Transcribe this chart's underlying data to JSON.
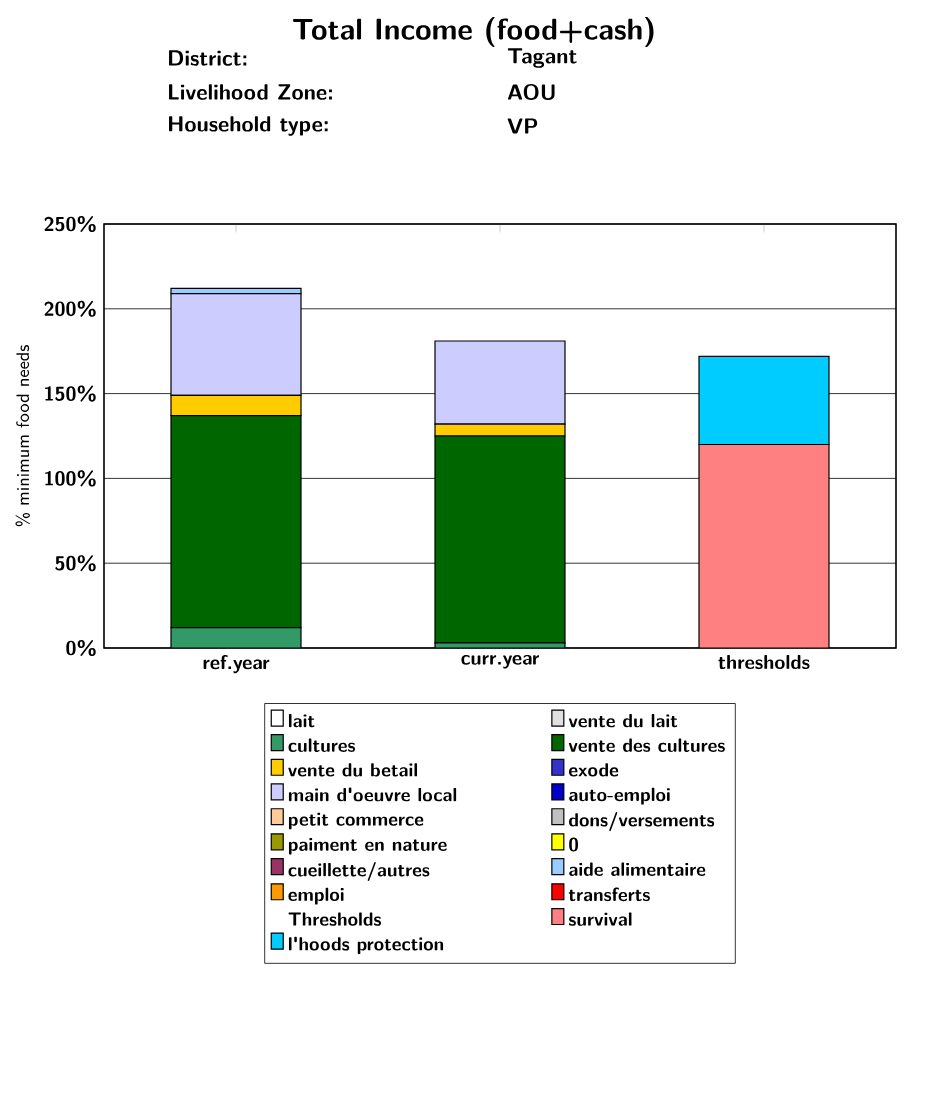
{
  "chart_data": {
    "type": "bar",
    "title": "Total Income (food+cash)",
    "annotations": [
      "District:",
      "Tagant",
      "Livelihood Zone:",
      "AOU",
      "Household type:",
      "VP",
      "Thresholds"
    ],
    "ylabel": "% minimum food needs",
    "categories": [
      "ref.year",
      "curr.year",
      "thresholds"
    ],
    "stacked": true,
    "grid": "y",
    "legend": "bottom",
    "ylim": [
      0,
      250
    ],
    "yticks": [
      {
        "value": 0,
        "label": "0%"
      },
      {
        "value": 50,
        "label": "50%"
      },
      {
        "value": 100,
        "label": "100%"
      },
      {
        "value": 150,
        "label": "150%"
      },
      {
        "value": 200,
        "label": "200%"
      },
      {
        "value": 250,
        "label": "250%"
      }
    ],
    "series": [
      {
        "name": "lait",
        "color": "#ffffff",
        "values": [
          0,
          0,
          0
        ]
      },
      {
        "name": "vente du lait",
        "color": "#e0e0e0",
        "values": [
          0,
          0,
          0
        ]
      },
      {
        "name": "cultures",
        "color": "#339966",
        "values": [
          12,
          3,
          0
        ]
      },
      {
        "name": "vente des cultures",
        "color": "#006600",
        "values": [
          125,
          122,
          0
        ]
      },
      {
        "name": "vente du betail",
        "color": "#ffcc00",
        "values": [
          12,
          7,
          0
        ]
      },
      {
        "name": "exode",
        "color": "#3333cc",
        "values": [
          0,
          0,
          0
        ]
      },
      {
        "name": "main d'oeuvre local",
        "color": "#ccccff",
        "values": [
          60,
          49,
          0
        ]
      },
      {
        "name": "auto-emploi",
        "color": "#0000cc",
        "values": [
          0,
          0,
          0
        ]
      },
      {
        "name": "petit commerce",
        "color": "#ffcc99",
        "values": [
          0,
          0,
          0
        ]
      },
      {
        "name": "dons/versements",
        "color": "#c0c0c0",
        "values": [
          0,
          0,
          0
        ]
      },
      {
        "name": "paiment en nature",
        "color": "#999900",
        "values": [
          0,
          0,
          0
        ]
      },
      {
        "name": "0",
        "color": "#ffff00",
        "values": [
          0,
          0,
          0
        ]
      },
      {
        "name": "cueillette/autres",
        "color": "#993366",
        "values": [
          0,
          0,
          0
        ]
      },
      {
        "name": "aide alimentaire",
        "color": "#99ccff",
        "values": [
          3,
          0,
          0
        ]
      },
      {
        "name": "emploi",
        "color": "#ff9900",
        "values": [
          0,
          0,
          0
        ]
      },
      {
        "name": "transferts",
        "color": "#ff0000",
        "values": [
          0,
          0,
          0
        ]
      },
      {
        "name": "survival",
        "color": "#ff8080",
        "values": [
          0,
          0,
          120
        ]
      },
      {
        "name": "l'hoods protection",
        "color": "#00ccff",
        "values": [
          0,
          0,
          52
        ]
      }
    ]
  }
}
